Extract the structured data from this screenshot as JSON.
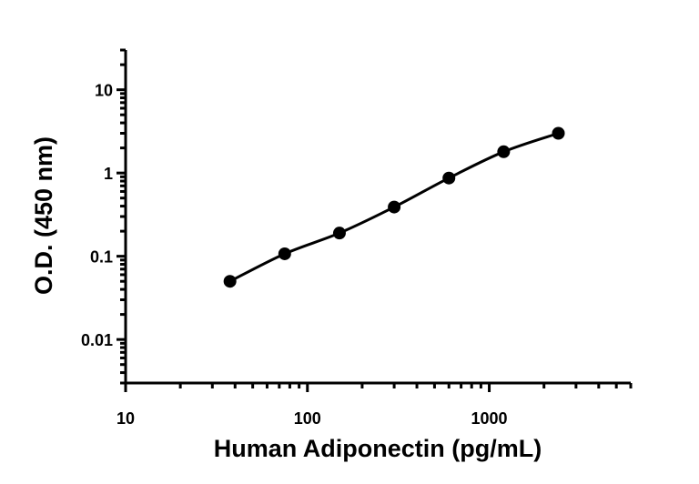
{
  "chart_data": {
    "type": "scatter",
    "title": "",
    "xlabel": "Human Adiponectin (pg/mL)",
    "ylabel": "O.D. (450 nm)",
    "xscale": "log",
    "yscale": "log",
    "xlim": [
      10,
      6000
    ],
    "ylim": [
      0.003,
      30
    ],
    "grid": false,
    "legend": "none",
    "xticks": [
      "10",
      "100",
      "1000"
    ],
    "yticks": [
      "0.01",
      "0.1",
      "1",
      "10"
    ],
    "series": [
      {
        "x": [
          37.5,
          75,
          150,
          300,
          600,
          1200,
          2400
        ],
        "y": [
          0.05,
          0.107,
          0.19,
          0.39,
          0.87,
          1.8,
          3.0
        ],
        "fit_curve": true
      }
    ],
    "colors": {
      "marker": "#000000",
      "line": "#000000",
      "axis": "#000000"
    }
  }
}
